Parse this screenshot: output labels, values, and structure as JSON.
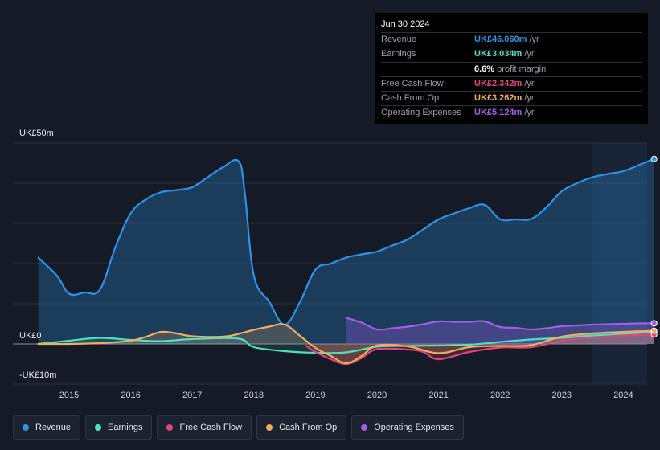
{
  "tooltip": {
    "date": "Jun 30 2024",
    "rows": [
      {
        "label": "Revenue",
        "value": "UK£46.060m",
        "unit": "/yr",
        "color": "#2e93e6"
      },
      {
        "label": "Earnings",
        "value": "UK£3.034m",
        "unit": "/yr",
        "color": "#4ee0c4"
      },
      {
        "label": "",
        "value": "6.6%",
        "unit": "profit margin",
        "color": "#ffffff"
      },
      {
        "label": "Free Cash Flow",
        "value": "UK£2.342m",
        "unit": "/yr",
        "color": "#e0457b"
      },
      {
        "label": "Cash From Op",
        "value": "UK£3.262m",
        "unit": "/yr",
        "color": "#f0ae5d"
      },
      {
        "label": "Operating Expenses",
        "value": "UK£5.124m",
        "unit": "/yr",
        "color": "#a35ee8"
      }
    ]
  },
  "legend": [
    {
      "label": "Revenue",
      "color": "#2e93e6"
    },
    {
      "label": "Earnings",
      "color": "#4ee0c4"
    },
    {
      "label": "Free Cash Flow",
      "color": "#e0457b"
    },
    {
      "label": "Cash From Op",
      "color": "#f0ae5d"
    },
    {
      "label": "Operating Expenses",
      "color": "#a35ee8"
    }
  ],
  "chart_data": {
    "type": "line",
    "title": "",
    "xlabel": "",
    "ylabel": "",
    "ylim": [
      -10,
      50
    ],
    "xlim": [
      2014.3,
      2024.5
    ],
    "y_tick_labels": [
      {
        "value": 50,
        "label": "UK£50m"
      },
      {
        "value": 0,
        "label": "UK£0"
      },
      {
        "value": -10,
        "label": "-UK£10m"
      }
    ],
    "x_ticks": [
      "2015",
      "2016",
      "2017",
      "2018",
      "2019",
      "2020",
      "2021",
      "2022",
      "2023",
      "2024"
    ],
    "series": [
      {
        "name": "Revenue",
        "color": "#2e93e6",
        "x": [
          2014.5,
          2014.8,
          2015.0,
          2015.25,
          2015.5,
          2015.75,
          2016.0,
          2016.25,
          2016.5,
          2016.75,
          2017.0,
          2017.25,
          2017.5,
          2017.75,
          2017.85,
          2018.0,
          2018.25,
          2018.5,
          2018.75,
          2019.0,
          2019.25,
          2019.5,
          2019.75,
          2020.0,
          2020.25,
          2020.5,
          2020.75,
          2021.0,
          2021.25,
          2021.5,
          2021.75,
          2022.0,
          2022.25,
          2022.5,
          2022.75,
          2023.0,
          2023.25,
          2023.5,
          2023.75,
          2024.0,
          2024.25,
          2024.5
        ],
        "values": [
          21.5,
          17,
          12.5,
          12.8,
          13.5,
          24,
          32.5,
          36,
          37.8,
          38.3,
          39,
          41.5,
          44,
          45.5,
          38,
          17,
          10.5,
          4.8,
          10.5,
          18.5,
          20,
          21.5,
          22.3,
          23,
          24.5,
          26,
          28.5,
          31,
          32.5,
          33.8,
          34.6,
          31,
          31,
          31.1,
          34,
          38,
          40,
          41.5,
          42.3,
          43,
          44.5,
          46.06
        ]
      },
      {
        "name": "Earnings",
        "color": "#4ee0c4",
        "x": [
          2014.5,
          2015.0,
          2015.5,
          2016.0,
          2016.5,
          2017.0,
          2017.75,
          2018.0,
          2018.5,
          2019.0,
          2019.5,
          2020.0,
          2020.5,
          2021.0,
          2021.5,
          2022.0,
          2022.5,
          2023.0,
          2023.5,
          2024.0,
          2024.5
        ],
        "values": [
          0,
          0.8,
          1.5,
          1,
          0.7,
          1.2,
          1.3,
          -0.8,
          -1.8,
          -2.2,
          -2.1,
          -0.7,
          -0.5,
          -0.4,
          -0.2,
          0.5,
          1.1,
          1.5,
          2.1,
          2.5,
          3.034
        ]
      },
      {
        "name": "Free Cash Flow",
        "color": "#e0457b",
        "x": [
          2018.85,
          2019.0,
          2019.25,
          2019.5,
          2019.75,
          2020.0,
          2020.5,
          2020.75,
          2021.0,
          2021.5,
          2022.0,
          2022.5,
          2023.0,
          2023.5,
          2024.0,
          2024.5
        ],
        "values": [
          -0.5,
          -2,
          -3.8,
          -5,
          -3.5,
          -1.3,
          -1.4,
          -2,
          -3.8,
          -2,
          -0.9,
          -0.8,
          0.8,
          1.6,
          2.1,
          2.342
        ]
      },
      {
        "name": "Cash From Op",
        "color": "#f0ae5d",
        "x": [
          2014.5,
          2015.0,
          2015.5,
          2016.0,
          2016.25,
          2016.5,
          2016.75,
          2017.0,
          2017.5,
          2017.75,
          2018.0,
          2018.25,
          2018.5,
          2018.75,
          2019.0,
          2019.25,
          2019.5,
          2019.75,
          2020.0,
          2020.5,
          2021.0,
          2021.5,
          2022.0,
          2022.5,
          2023.0,
          2023.5,
          2024.0,
          2024.5
        ],
        "values": [
          0,
          0,
          0.2,
          0.8,
          1.8,
          3,
          2.6,
          1.9,
          1.8,
          2.5,
          3.5,
          4.3,
          4.8,
          2,
          -1,
          -3,
          -4.8,
          -3,
          -0.4,
          -0.6,
          -2.3,
          -0.8,
          -0.5,
          -0.3,
          1.8,
          2.6,
          3.0,
          3.262
        ]
      },
      {
        "name": "Operating Expenses",
        "color": "#a35ee8",
        "x": [
          2019.5,
          2019.75,
          2020.0,
          2020.25,
          2020.5,
          2020.75,
          2021.0,
          2021.25,
          2021.5,
          2021.75,
          2022.0,
          2022.25,
          2022.5,
          2022.75,
          2023.0,
          2023.25,
          2023.5,
          2023.75,
          2024.0,
          2024.25,
          2024.5
        ],
        "values": [
          6.5,
          5.3,
          3.6,
          3.9,
          4.3,
          4.9,
          5.6,
          5.5,
          5.5,
          5.6,
          4.2,
          4.0,
          3.6,
          3.9,
          4.4,
          4.6,
          4.8,
          4.9,
          5.0,
          5.1,
          5.124
        ]
      }
    ],
    "highlight_start": 2023.5
  }
}
